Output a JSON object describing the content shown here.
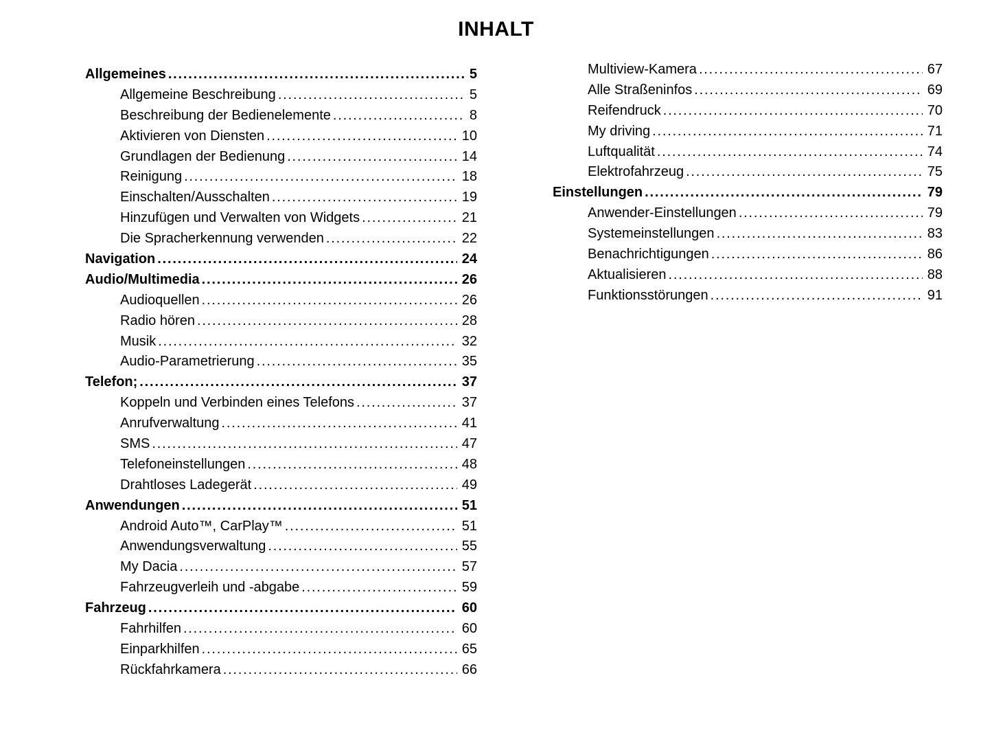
{
  "page": {
    "title": "INHALT",
    "background_color": "#ffffff",
    "text_color": "#000000"
  },
  "toc": {
    "columns": [
      {
        "name": "left",
        "entries": [
          {
            "label": "Allgemeines",
            "page": "5",
            "level": 0,
            "bold": true
          },
          {
            "label": "Allgemeine Beschreibung",
            "page": "5",
            "level": 1,
            "bold": false
          },
          {
            "label": "Beschreibung der Bedienelemente",
            "page": "8",
            "level": 1,
            "bold": false
          },
          {
            "label": "Aktivieren von Diensten",
            "page": "10",
            "level": 1,
            "bold": false
          },
          {
            "label": "Grundlagen der Bedienung",
            "page": "14",
            "level": 1,
            "bold": false
          },
          {
            "label": "Reinigung",
            "page": "18",
            "level": 1,
            "bold": false
          },
          {
            "label": "Einschalten/Ausschalten",
            "page": "19",
            "level": 1,
            "bold": false
          },
          {
            "label": "Hinzufügen und Verwalten von Widgets",
            "page": "21",
            "level": 1,
            "bold": false
          },
          {
            "label": "Die Spracherkennung verwenden",
            "page": "22",
            "level": 1,
            "bold": false
          },
          {
            "label": "Navigation",
            "page": "24",
            "level": 0,
            "bold": true
          },
          {
            "label": "Audio/Multimedia",
            "page": "26",
            "level": 0,
            "bold": true
          },
          {
            "label": "Audioquellen",
            "page": "26",
            "level": 1,
            "bold": false
          },
          {
            "label": "Radio hören",
            "page": "28",
            "level": 1,
            "bold": false
          },
          {
            "label": "Musik",
            "page": "32",
            "level": 1,
            "bold": false
          },
          {
            "label": "Audio-Parametrierung",
            "page": "35",
            "level": 1,
            "bold": false
          },
          {
            "label": "Telefon;",
            "page": "37",
            "level": 0,
            "bold": true
          },
          {
            "label": "Koppeln und Verbinden eines Telefons",
            "page": "37",
            "level": 1,
            "bold": false
          },
          {
            "label": "Anrufverwaltung",
            "page": "41",
            "level": 1,
            "bold": false
          },
          {
            "label": "SMS",
            "page": "47",
            "level": 1,
            "bold": false
          },
          {
            "label": "Telefoneinstellungen",
            "page": "48",
            "level": 1,
            "bold": false
          },
          {
            "label": "Drahtloses Ladegerät",
            "page": "49",
            "level": 1,
            "bold": false
          },
          {
            "label": "Anwendungen",
            "page": "51",
            "level": 0,
            "bold": true
          },
          {
            "label": "Android Auto™, CarPlay™",
            "page": "51",
            "level": 1,
            "bold": false
          },
          {
            "label": "Anwendungsverwaltung",
            "page": "55",
            "level": 1,
            "bold": false
          },
          {
            "label": "My Dacia",
            "page": "57",
            "level": 1,
            "bold": false
          },
          {
            "label": "Fahrzeugverleih und -abgabe",
            "page": "59",
            "level": 1,
            "bold": false
          },
          {
            "label": "Fahrzeug",
            "page": "60",
            "level": 0,
            "bold": true
          },
          {
            "label": "Fahrhilfen",
            "page": "60",
            "level": 1,
            "bold": false
          },
          {
            "label": "Einparkhilfen",
            "page": "65",
            "level": 1,
            "bold": false
          },
          {
            "label": "Rückfahrkamera",
            "page": "66",
            "level": 1,
            "bold": false
          }
        ]
      },
      {
        "name": "right",
        "entries": [
          {
            "label": "Multiview-Kamera",
            "page": "67",
            "level": 1,
            "bold": false
          },
          {
            "label": "Alle Straßeninfos",
            "page": "69",
            "level": 1,
            "bold": false
          },
          {
            "label": "Reifendruck",
            "page": "70",
            "level": 1,
            "bold": false
          },
          {
            "label": "My driving",
            "page": "71",
            "level": 1,
            "bold": false
          },
          {
            "label": "Luftqualität",
            "page": "74",
            "level": 1,
            "bold": false
          },
          {
            "label": "Elektrofahrzeug",
            "page": "75",
            "level": 1,
            "bold": false
          },
          {
            "label": "Einstellungen",
            "page": "79",
            "level": 0,
            "bold": true
          },
          {
            "label": "Anwender-Einstellungen",
            "page": "79",
            "level": 1,
            "bold": false
          },
          {
            "label": "Systemeinstellungen",
            "page": "83",
            "level": 1,
            "bold": false
          },
          {
            "label": "Benachrichtigungen",
            "page": "86",
            "level": 1,
            "bold": false
          },
          {
            "label": "Aktualisieren",
            "page": "88",
            "level": 1,
            "bold": false
          },
          {
            "label": "Funktionsstörungen",
            "page": "91",
            "level": 1,
            "bold": false
          }
        ]
      }
    ]
  }
}
